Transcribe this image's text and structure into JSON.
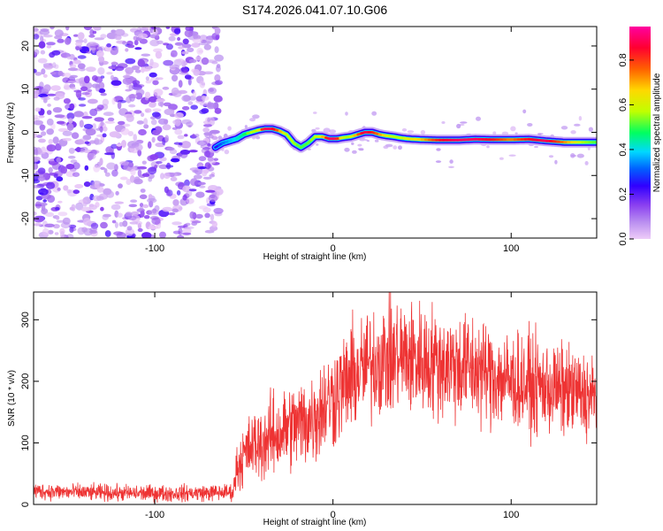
{
  "title": "S174.2026.041.07.10.G06",
  "chart_data": [
    {
      "type": "heatmap",
      "title": "S174.2026.041.07.10.G06",
      "xlabel": "Height of straight line (km)",
      "ylabel": "Frequency (Hz)",
      "xlim": [
        -168,
        148
      ],
      "ylim": [
        -24.5,
        24.5
      ],
      "xticks": [
        -100,
        0,
        100
      ],
      "yticks": [
        -20,
        -10,
        0,
        10,
        20
      ],
      "colorbar": {
        "label": "Normalized spectral amplitude",
        "range": [
          0.0,
          0.95
        ],
        "ticks": [
          "0.0",
          "0.2",
          "0.4",
          "0.6",
          "0.8"
        ],
        "colormap": [
          "#eeccf8",
          "#b98ef0",
          "#8a3ff0",
          "#3000ff",
          "#0060ff",
          "#00d8ff",
          "#00ff60",
          "#c0ff00",
          "#ffd800",
          "#ff6000",
          "#ff0030",
          "#ff00a0"
        ]
      },
      "noise_region": {
        "x_start": -168,
        "x_end": -64
      },
      "ridge": {
        "x": [
          -66,
          -62,
          -58,
          -54,
          -50,
          -46,
          -42,
          -38,
          -34,
          -30,
          -26,
          -22,
          -18,
          -14,
          -10,
          -6,
          -2,
          2,
          6,
          10,
          14,
          18,
          22,
          26,
          30,
          34,
          38,
          42,
          50,
          60,
          70,
          80,
          90,
          100,
          110,
          120,
          130,
          140,
          148
        ],
        "y": [
          -3.5,
          -2.5,
          -2.0,
          -1.5,
          -0.5,
          0.0,
          0.5,
          0.8,
          0.8,
          0.3,
          -0.5,
          -2.5,
          -3.5,
          -2.5,
          -1.0,
          -1.0,
          -1.5,
          -1.5,
          -1.2,
          -1.0,
          -0.5,
          0.0,
          0.0,
          -0.5,
          -0.8,
          -1.0,
          -1.3,
          -1.5,
          -1.7,
          -1.8,
          -1.8,
          -1.6,
          -1.7,
          -1.7,
          -1.6,
          -2.0,
          -2.3,
          -2.3,
          -2.3
        ],
        "amplitude": [
          0.25,
          0.35,
          0.4,
          0.45,
          0.5,
          0.6,
          0.6,
          0.9,
          0.9,
          0.75,
          0.6,
          0.6,
          0.55,
          0.55,
          0.6,
          0.65,
          0.9,
          0.9,
          0.6,
          0.6,
          0.75,
          0.9,
          0.85,
          0.75,
          0.65,
          0.6,
          0.6,
          0.65,
          0.7,
          0.85,
          0.9,
          0.9,
          0.85,
          0.75,
          0.85,
          0.9,
          0.75,
          0.6,
          0.55
        ]
      }
    },
    {
      "type": "line",
      "xlabel": "Height of straight line (km)",
      "ylabel": "SNR (10 * v/v)",
      "xlim": [
        -168,
        148
      ],
      "ylim": [
        0,
        345
      ],
      "xticks": [
        -100,
        0,
        100
      ],
      "yticks": [
        0,
        100,
        200,
        300
      ],
      "color": "#ee3333",
      "series": [
        {
          "name": "SNR",
          "x": [
            -168,
            -150,
            -130,
            -110,
            -90,
            -70,
            -56,
            -54,
            -50,
            -45,
            -40,
            -35,
            -30,
            -25,
            -20,
            -15,
            -10,
            -5,
            0,
            5,
            10,
            15,
            20,
            25,
            30,
            35,
            40,
            50,
            60,
            70,
            80,
            90,
            100,
            110,
            120,
            130,
            140,
            148
          ],
          "center": [
            22,
            20,
            19,
            18,
            18,
            19,
            20,
            60,
            80,
            95,
            100,
            110,
            115,
            125,
            130,
            135,
            145,
            160,
            175,
            190,
            205,
            215,
            225,
            235,
            238,
            240,
            240,
            235,
            230,
            225,
            220,
            210,
            200,
            195,
            190,
            185,
            178,
            170
          ],
          "spread": [
            12,
            12,
            12,
            12,
            12,
            12,
            12,
            35,
            45,
            50,
            55,
            60,
            60,
            62,
            65,
            68,
            70,
            72,
            75,
            75,
            78,
            80,
            80,
            82,
            85,
            85,
            85,
            82,
            80,
            80,
            78,
            75,
            72,
            70,
            68,
            66,
            64,
            62
          ]
        }
      ]
    }
  ]
}
